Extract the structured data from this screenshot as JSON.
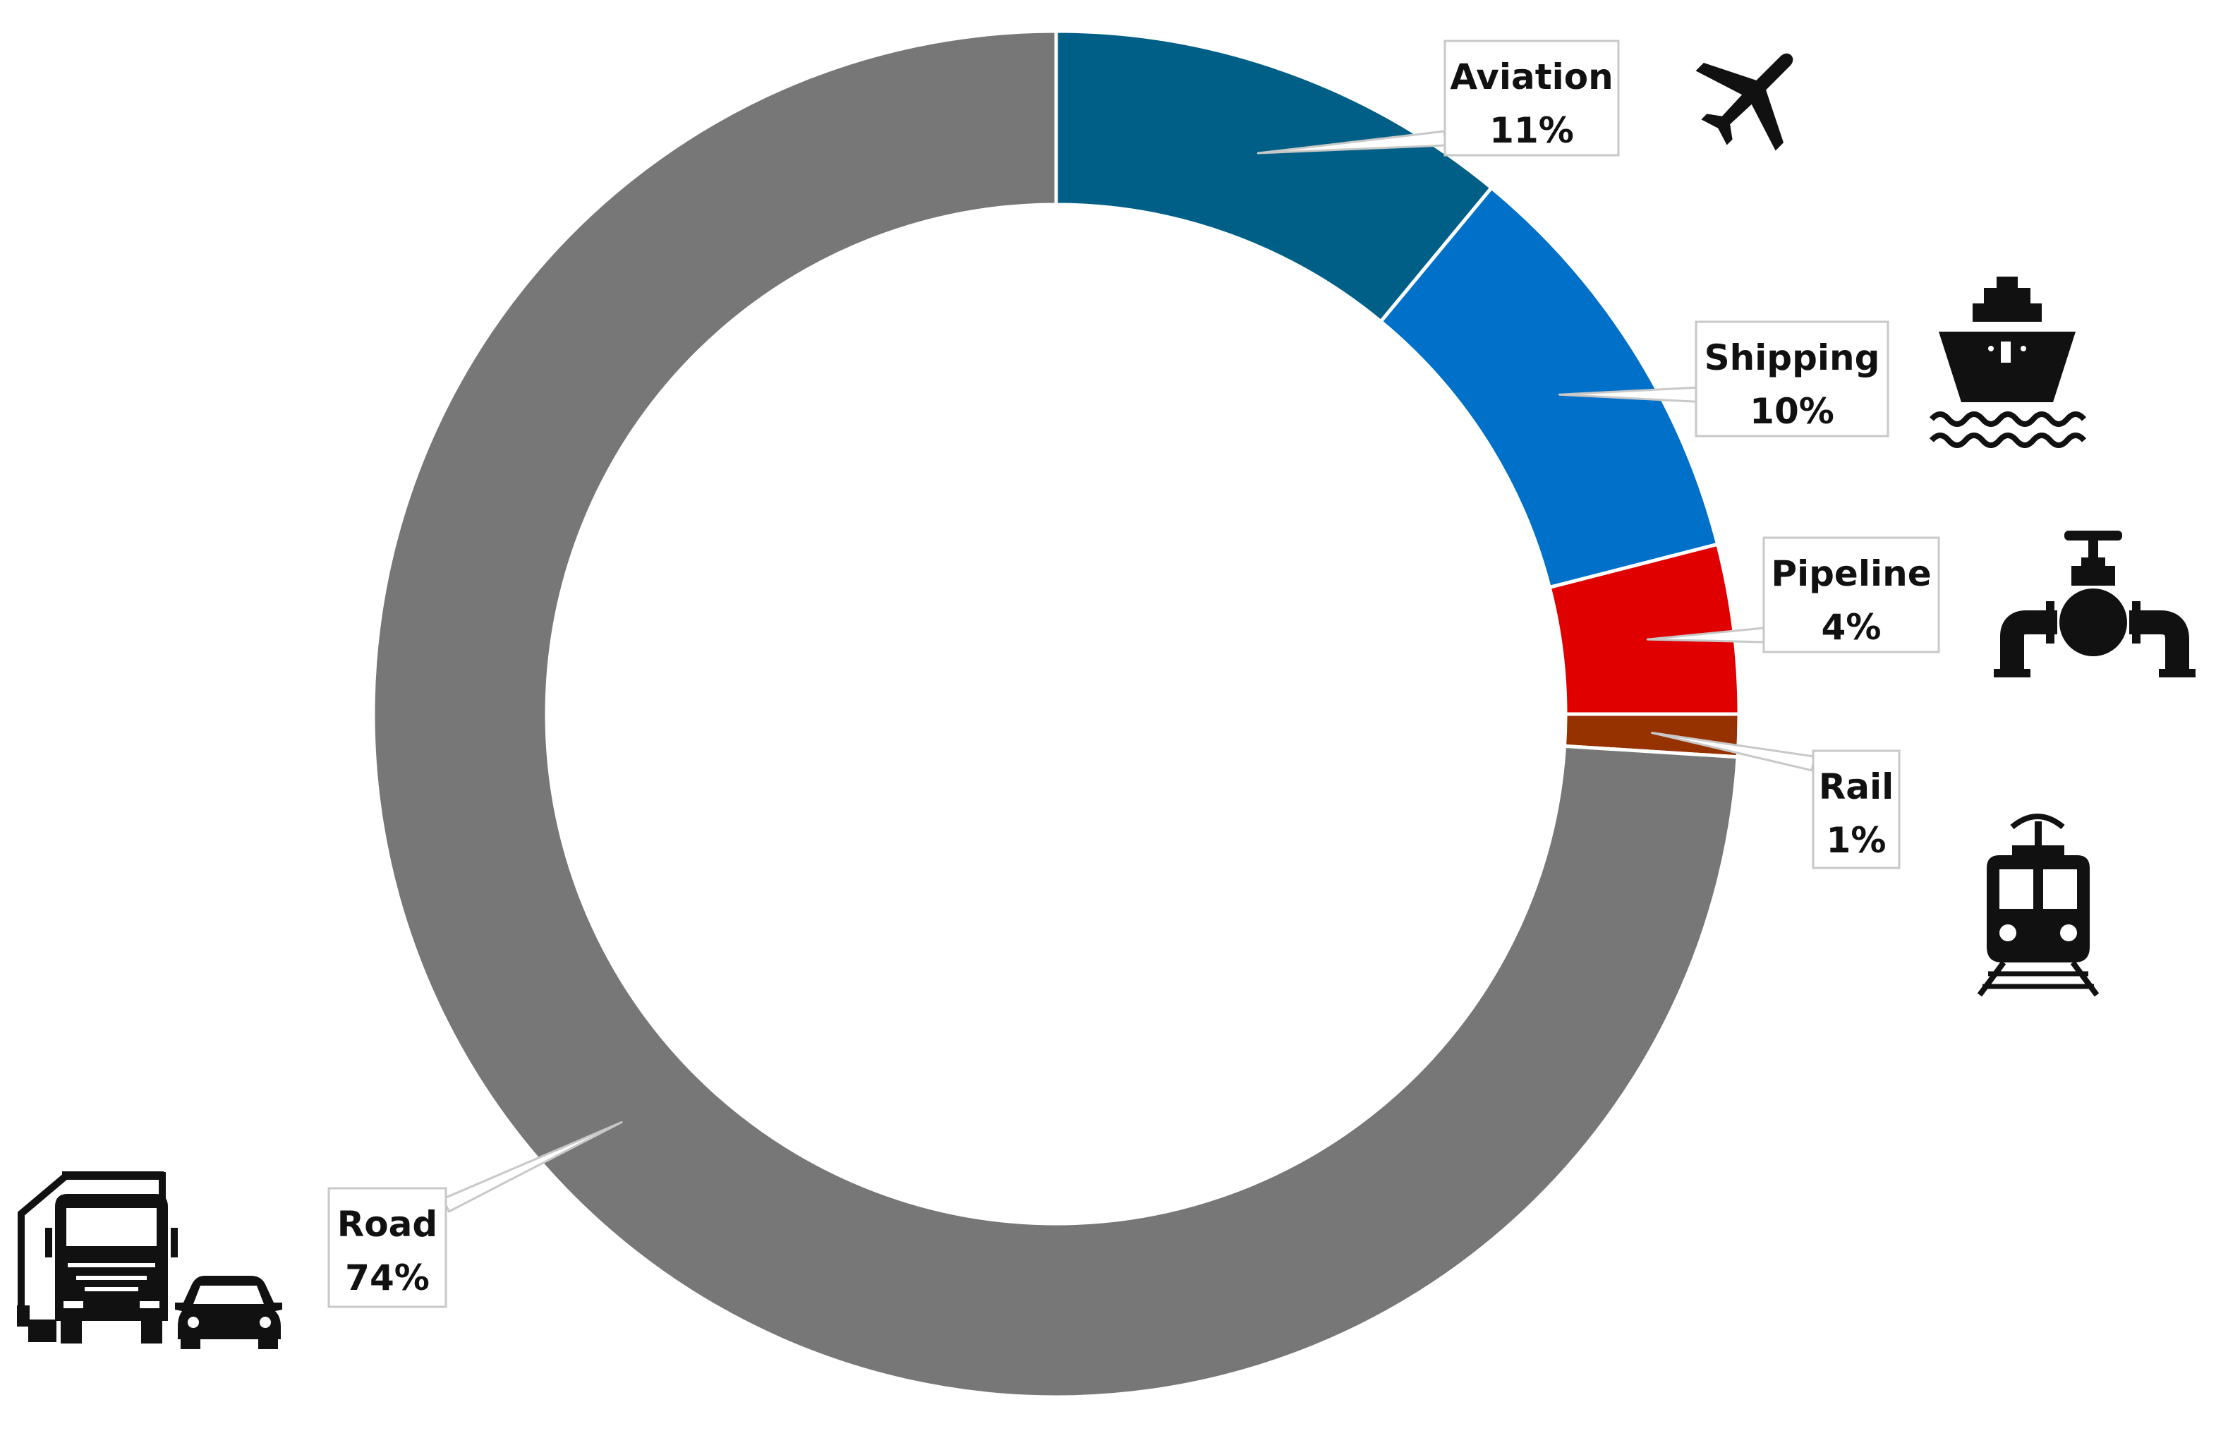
{
  "chart_data": {
    "type": "pie",
    "variant": "donut",
    "title": "",
    "slices": [
      {
        "name": "Aviation",
        "value": 11,
        "label": "11%",
        "color": "#005f86",
        "icon": "airplane-icon"
      },
      {
        "name": "Shipping",
        "value": 10,
        "label": "10%",
        "color": "#0070c8",
        "icon": "ship-icon"
      },
      {
        "name": "Pipeline",
        "value": 4,
        "label": "4%",
        "color": "#e00000",
        "icon": "pipeline-valve-icon"
      },
      {
        "name": "Rail",
        "value": 1,
        "label": "1%",
        "color": "#963200",
        "icon": "train-icon"
      },
      {
        "name": "Road",
        "value": 74,
        "label": "74%",
        "color": "#777777",
        "icon": "truck-and-car-icon"
      }
    ],
    "start_angle": "12 o'clock",
    "direction": "clockwise",
    "legend": "none",
    "data_labels": "callout boxes with leader lines"
  }
}
